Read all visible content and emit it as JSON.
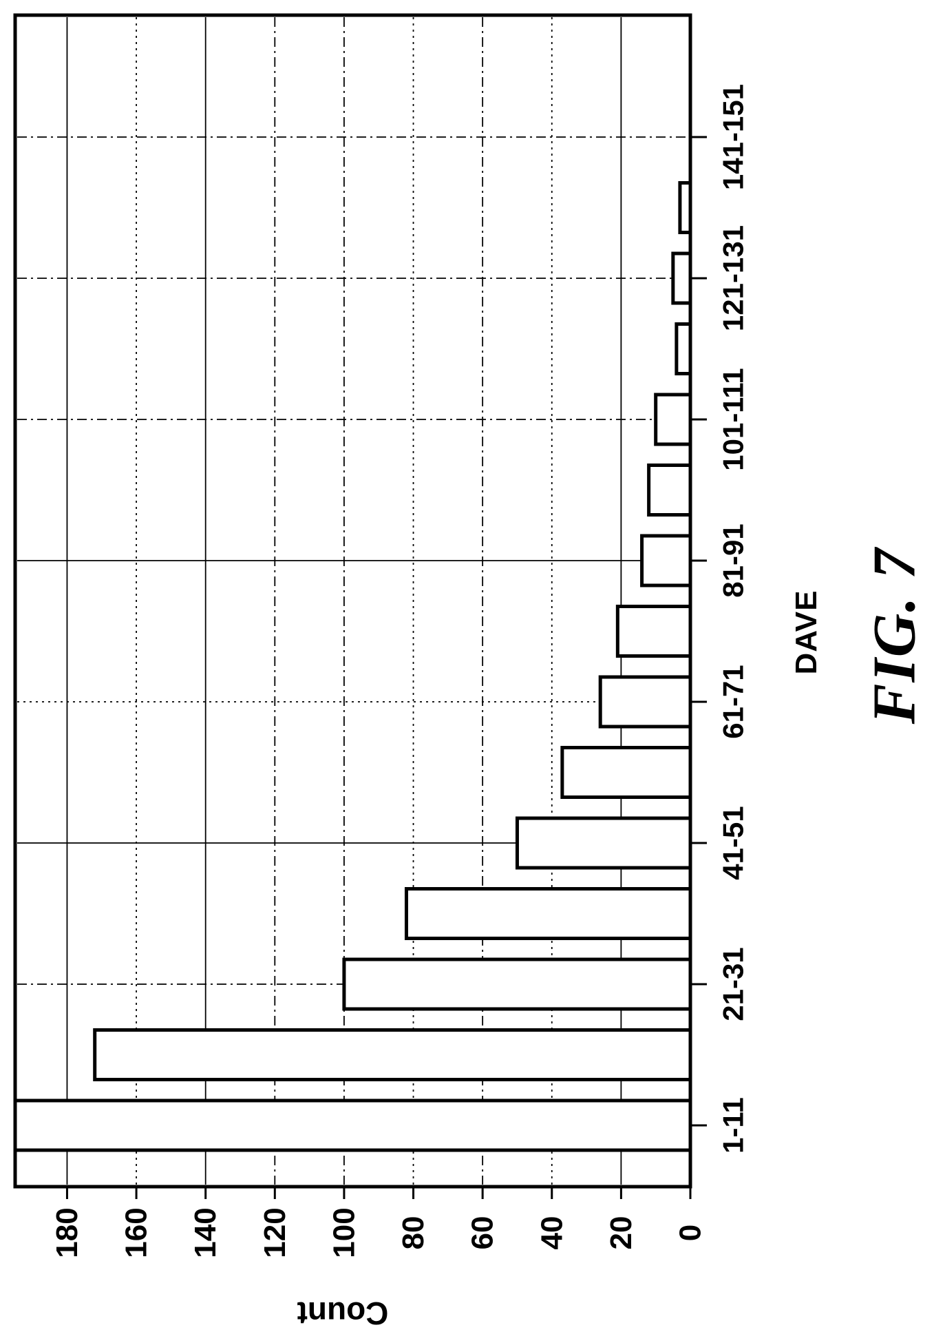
{
  "figure": {
    "label": "FIG. 7"
  },
  "chart_data": {
    "type": "bar",
    "subtype": "histogram",
    "orientation": "figure rotated 90deg CCW on page; bars horizontal, baseline at right edge",
    "title": "",
    "xlabel": "DAVE",
    "ylabel": "Count",
    "categories": [
      "1-11",
      "11-21",
      "21-31",
      "31-41",
      "41-51",
      "51-61",
      "61-71",
      "71-81",
      "81-91",
      "91-101",
      "101-111",
      "111-121",
      "121-131",
      "131-141",
      "141-151"
    ],
    "values": [
      195,
      172,
      100,
      82,
      50,
      37,
      26,
      21,
      14,
      12,
      10,
      4,
      5,
      3,
      0
    ],
    "labeled_categories": [
      "1-11",
      "21-31",
      "41-51",
      "61-71",
      "81-91",
      "101-111",
      "121-131",
      "141-151"
    ],
    "value_ticks": [
      0,
      20,
      40,
      60,
      80,
      100,
      120,
      140,
      160,
      180
    ],
    "ylim": [
      0,
      195
    ],
    "grid": "on",
    "legend": "none",
    "bar_fill": "#ffffff",
    "line_color": "#000000"
  }
}
